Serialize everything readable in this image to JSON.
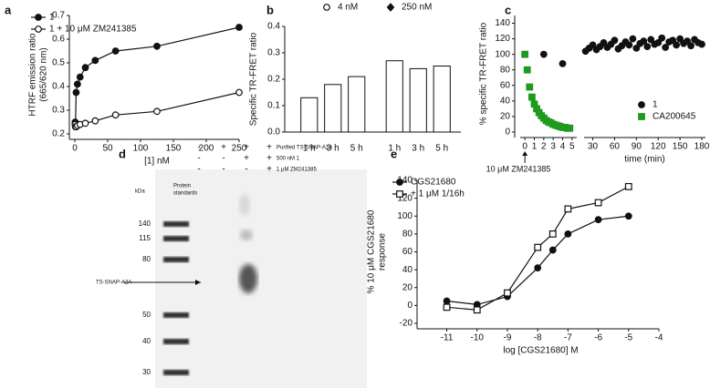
{
  "chart_data": [
    {
      "type": "scatter",
      "panel_label": "a",
      "ylabel": [
        "HTRF emission ratio",
        "(665/620 nm)"
      ],
      "xlabel": "[1] nM",
      "xlim": [
        0,
        250
      ],
      "xticks": [
        0,
        50,
        100,
        150,
        200,
        250
      ],
      "ylim": [
        0.2,
        0.7
      ],
      "yticks": [
        0.2,
        0.3,
        0.4,
        0.5,
        0.6,
        0.7
      ],
      "legend": "upper left",
      "line": true,
      "x": [
        0.5,
        1,
        2,
        4,
        8,
        16,
        31,
        62,
        125,
        250
      ],
      "series": [
        {
          "name": "1",
          "color": "#111111",
          "marker": "circle-filled",
          "values": [
            0.25,
            0.245,
            0.375,
            0.41,
            0.44,
            0.48,
            0.51,
            0.55,
            0.57,
            0.65
          ]
        },
        {
          "name": "1 + 10 μM ZM241385",
          "color": "#111111",
          "marker": "circle-open",
          "values": [
            0.24,
            0.23,
            0.23,
            0.235,
            0.24,
            0.245,
            0.255,
            0.28,
            0.295,
            0.375
          ]
        }
      ]
    },
    {
      "type": "bar",
      "panel_label": "b",
      "ylabel": [
        "Specific TR-FRET ratio"
      ],
      "categories": [
        "1 h",
        "3 h",
        "5 h"
      ],
      "ylim": [
        0,
        0.4
      ],
      "yticks": [
        {
          "value": 0,
          "label": "0.0"
        },
        0.1,
        0.2,
        0.3,
        0.4
      ],
      "legend": "top",
      "series": [
        {
          "name": "4 nM",
          "color": "#111111",
          "marker": "circle-open",
          "values": [
            0.13,
            0.18,
            0.21
          ]
        },
        {
          "name": "250 nM",
          "color": "#111111",
          "marker": "diamond",
          "values": [
            0.27,
            0.24,
            0.25
          ]
        }
      ]
    },
    {
      "type": "scatter",
      "panel_label": "c",
      "ylabel": [
        "% specific TR-FRET ratio"
      ],
      "xlabel": "time (min)",
      "annotation": "10 μM ZM241385",
      "xlim": [
        -0.5,
        5.5
      ],
      "xticks": [
        0,
        1,
        2,
        3,
        4,
        5
      ],
      "xlim_break": [
        18,
        185
      ],
      "xticks_break": [
        30,
        60,
        90,
        120,
        150,
        180
      ],
      "ylim": [
        0,
        150
      ],
      "yticks": [
        0,
        20,
        40,
        60,
        80,
        100,
        120,
        140
      ],
      "legend": "lower right",
      "line": false,
      "series": [
        {
          "name": "1",
          "color": "#111111",
          "marker": "circle-filled",
          "x": [
            0,
            2,
            4,
            20,
            25,
            30,
            35,
            40,
            45,
            50,
            55,
            60,
            65,
            70,
            75,
            80,
            85,
            90,
            95,
            100,
            105,
            110,
            115,
            120,
            125,
            130,
            135,
            140,
            145,
            150,
            155,
            160,
            165,
            170,
            175,
            180
          ],
          "values": [
            100,
            100,
            88,
            104,
            108,
            112,
            106,
            110,
            115,
            109,
            113,
            118,
            107,
            111,
            116,
            112,
            120,
            108,
            114,
            117,
            110,
            119,
            113,
            115,
            121,
            109,
            116,
            118,
            112,
            120,
            114,
            117,
            111,
            119,
            115,
            113
          ]
        },
        {
          "name": "CA200645",
          "color": "#1f9a1f",
          "marker": "square-filled",
          "x": [
            0,
            0.25,
            0.5,
            0.75,
            1,
            1.25,
            1.5,
            1.75,
            2,
            2.25,
            2.5,
            2.75,
            3,
            3.25,
            3.5,
            3.75,
            4,
            4.25,
            4.5,
            4.75
          ],
          "values": [
            100,
            80,
            58,
            45,
            36,
            30,
            25,
            21,
            18,
            15,
            13,
            12,
            10,
            9,
            8,
            7,
            6,
            6,
            5,
            5
          ]
        }
      ]
    },
    {
      "type": "scatter",
      "panel_label": "e",
      "ylabel": [
        "% 10 μM CGS21680",
        "response"
      ],
      "xlabel": "log [CGS21680] M",
      "xlim": [
        -11.8,
        -4
      ],
      "xticks": [
        -11,
        -10,
        -9,
        -8,
        -7,
        -6,
        -5,
        -4
      ],
      "ylim": [
        -20,
        140
      ],
      "yticks": [
        -20,
        0,
        20,
        40,
        60,
        80,
        100,
        120,
        140
      ],
      "legend": "upper left",
      "line": true,
      "x": [
        -11,
        -10,
        -9,
        -8,
        -7.5,
        -7,
        -6,
        -5
      ],
      "series": [
        {
          "name": "CGS21680",
          "color": "#111111",
          "marker": "circle-filled",
          "values": [
            5,
            1,
            10,
            42,
            62,
            80,
            96,
            100
          ]
        },
        {
          "name": "+ 1 μM 1/16h",
          "color": "#111111",
          "marker": "square-open",
          "values": [
            -2,
            -5,
            14,
            65,
            80,
            108,
            115,
            133
          ]
        }
      ]
    }
  ],
  "gel": {
    "panel_label": "d",
    "kda": "kDa",
    "lane_header": [
      "Protein",
      "standards"
    ],
    "conditions": [
      {
        "label": "Purified TS-SNAP-A2A",
        "marks": [
          "-",
          "+",
          "+",
          "+"
        ]
      },
      {
        "label": "500 nM 1",
        "marks": [
          "-",
          "-",
          "+",
          "+"
        ]
      },
      {
        "label": "1 μM ZM241385",
        "marks": [
          "-",
          "-",
          "-",
          "+"
        ]
      }
    ],
    "markers": [
      140,
      115,
      80,
      50,
      40,
      30
    ],
    "band_label": "TS-SNAP-A2A"
  }
}
